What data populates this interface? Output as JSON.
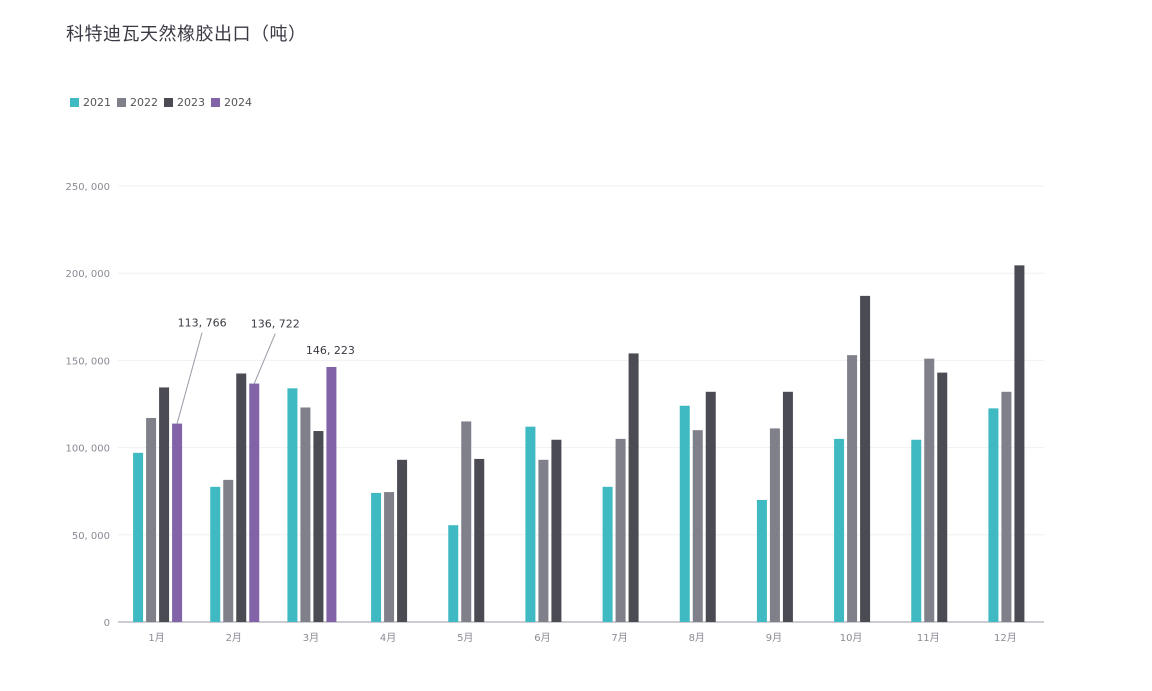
{
  "chart_data": {
    "type": "bar",
    "title": "科特迪瓦天然橡胶出口（吨）",
    "categories": [
      "1月",
      "2月",
      "3月",
      "4月",
      "5月",
      "6月",
      "7月",
      "8月",
      "9月",
      "10月",
      "11月",
      "12月"
    ],
    "series": [
      {
        "name": "2021",
        "color": "#3fbac2",
        "values": [
          97000,
          77500,
          134000,
          74000,
          55500,
          112000,
          77500,
          124000,
          70000,
          105000,
          104500,
          122500
        ]
      },
      {
        "name": "2022",
        "color": "#7f8089",
        "values": [
          117000,
          81500,
          123000,
          74500,
          115000,
          93000,
          105000,
          110000,
          111000,
          153000,
          151000,
          132000
        ]
      },
      {
        "name": "2023",
        "color": "#4a4b53",
        "values": [
          134500,
          142500,
          109500,
          93000,
          93500,
          104500,
          154000,
          132000,
          132000,
          187000,
          143000,
          204500
        ]
      },
      {
        "name": "2024",
        "color": "#8263a8",
        "values": [
          113766,
          136722,
          146223,
          null,
          null,
          null,
          null,
          null,
          null,
          null,
          null,
          null
        ]
      }
    ],
    "yticks": [
      "0",
      "50, 000",
      "100, 000",
      "150, 000",
      "200, 000",
      "250, 000"
    ],
    "ylim": [
      0,
      250000
    ],
    "grid": true,
    "legend_position": "top-left",
    "annotations": [
      {
        "series": "2024",
        "category": "1月",
        "text": "113, 766"
      },
      {
        "series": "2024",
        "category": "2月",
        "text": "136, 722"
      },
      {
        "series": "2024",
        "category": "3月",
        "text": "146, 223"
      }
    ]
  }
}
